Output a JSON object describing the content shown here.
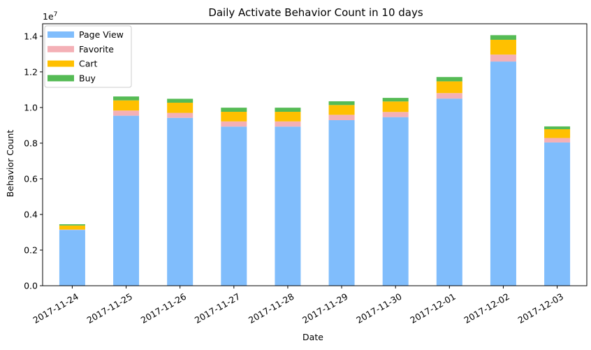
{
  "chart_data": {
    "type": "bar",
    "stacked": true,
    "title": "Daily Activate Behavior Count in 10 days",
    "xlabel": "Date",
    "ylabel": "Behavior Count",
    "y_multiplier_label": "1e7",
    "ylim": [
      0,
      14700000
    ],
    "y_ticks": [
      0,
      2000000,
      4000000,
      6000000,
      8000000,
      10000000,
      12000000,
      14000000
    ],
    "y_tick_labels": [
      "0.0",
      "0.2",
      "0.4",
      "0.6",
      "0.8",
      "1.0",
      "1.2",
      "1.4"
    ],
    "categories": [
      "2017-11-24",
      "2017-11-25",
      "2017-11-26",
      "2017-11-27",
      "2017-11-28",
      "2017-11-29",
      "2017-11-30",
      "2017-12-01",
      "2017-12-02",
      "2017-12-03"
    ],
    "series": [
      {
        "name": "Page View",
        "color": "#80bdfc",
        "values": [
          3130000,
          9540000,
          9420000,
          8930000,
          8930000,
          9290000,
          9460000,
          10500000,
          12580000,
          8040000
        ]
      },
      {
        "name": "Favorite",
        "color": "#f4b0b6",
        "values": [
          20000,
          290000,
          280000,
          290000,
          290000,
          300000,
          290000,
          310000,
          390000,
          250000
        ]
      },
      {
        "name": "Cart",
        "color": "#ffc000",
        "values": [
          230000,
          570000,
          570000,
          540000,
          540000,
          550000,
          590000,
          660000,
          830000,
          490000
        ]
      },
      {
        "name": "Buy",
        "color": "#55bb55",
        "values": [
          70000,
          220000,
          220000,
          230000,
          230000,
          210000,
          200000,
          240000,
          260000,
          160000
        ]
      }
    ],
    "grid": false,
    "legend_position": "top-left"
  }
}
